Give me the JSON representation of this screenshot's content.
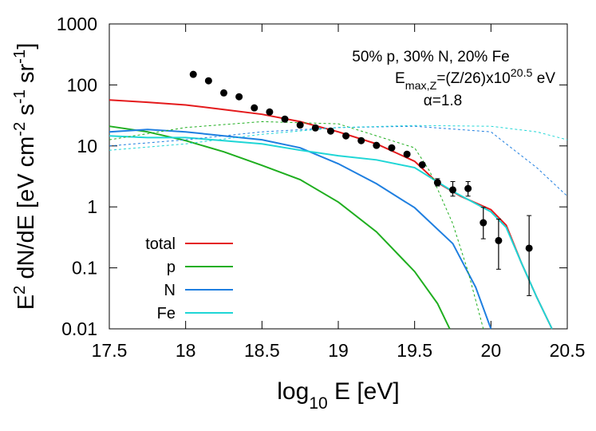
{
  "chart_data": {
    "type": "line",
    "annotations": [
      "50% p, 30% N, 20% Fe",
      [
        "E",
        "max,Z",
        "=(Z/26)x10",
        "20.5",
        " eV"
      ],
      "α=1.8"
    ],
    "xlabel": [
      "log",
      "10",
      " E [eV]"
    ],
    "ylabel": [
      "E",
      "2",
      " dN/dE [eV cm",
      "-2",
      " s",
      "-1",
      " sr",
      "-1",
      "]"
    ],
    "xlim": [
      17.5,
      20.5
    ],
    "xticks": [
      17.5,
      18,
      18.5,
      19,
      19.5,
      20,
      20.5
    ],
    "ylim": [
      0.01,
      1000
    ],
    "yticks": [
      0.01,
      0.1,
      1,
      10,
      100,
      1000
    ],
    "log_y": true,
    "legend": "lower left",
    "series": [
      {
        "name": "total",
        "color": "#e41a1c",
        "x": [
          17.5,
          17.75,
          18,
          18.25,
          18.5,
          18.75,
          19,
          19.25,
          19.5,
          19.65,
          19.8,
          20,
          20.1,
          20.2,
          20.3,
          20.4
        ],
        "values": [
          56.7,
          52,
          47,
          39.5,
          33,
          25,
          17,
          10.8,
          5.6,
          2.5,
          1.5,
          0.9,
          0.5,
          0.12,
          0.033,
          0.01
        ]
      },
      {
        "name": "p",
        "color": "#1fae1f",
        "x": [
          17.5,
          17.75,
          18,
          18.25,
          18.5,
          18.75,
          19,
          19.25,
          19.5,
          19.65,
          19.73
        ],
        "values": [
          21,
          17,
          12.2,
          8,
          4.8,
          2.8,
          1.2,
          0.39,
          0.087,
          0.026,
          0.01
        ]
      },
      {
        "name": "N",
        "color": "#1f7fe0",
        "x": [
          17.5,
          17.75,
          18,
          18.25,
          18.5,
          18.75,
          19,
          19.25,
          19.5,
          19.75,
          19.9,
          20
        ],
        "values": [
          17,
          18.6,
          17,
          14.6,
          12.6,
          9.3,
          5.1,
          2.4,
          0.97,
          0.25,
          0.048,
          0.01
        ]
      },
      {
        "name": "Fe",
        "color": "#1fd6d6",
        "x": [
          17.5,
          17.75,
          18,
          18.25,
          18.5,
          18.75,
          19,
          19.25,
          19.5,
          19.75,
          20,
          20.1,
          20.2,
          20.3,
          20.4
        ],
        "values": [
          14.6,
          13.7,
          13.7,
          12.2,
          10.8,
          8.5,
          6.9,
          5.9,
          4.4,
          1.8,
          0.83,
          0.46,
          0.12,
          0.033,
          0.01
        ]
      },
      {
        "color": "#1fae1f",
        "dashed": true,
        "x": [
          17.5,
          18,
          18.5,
          19,
          19.5,
          19.6,
          19.75,
          19.85,
          19.95
        ],
        "values": [
          12.6,
          20,
          25,
          23,
          9.3,
          3.8,
          0.53,
          0.087,
          0.01
        ]
      },
      {
        "color": "#1f7fe0",
        "dashed": true,
        "x": [
          17.5,
          18,
          18.5,
          19,
          19.5,
          20,
          20.1,
          20.3,
          20.5
        ],
        "values": [
          10,
          12.6,
          17,
          20,
          21,
          17,
          10.8,
          4.4,
          1.5
        ]
      },
      {
        "color": "#1fd6d6",
        "dashed": true,
        "x": [
          17.5,
          18,
          18.5,
          19,
          19.5,
          20,
          20.3,
          20.5
        ],
        "values": [
          8.5,
          10.8,
          15.5,
          20,
          21.6,
          21,
          17,
          12.6
        ]
      }
    ],
    "points": {
      "color": "#000000",
      "x": [
        18.05,
        18.15,
        18.25,
        18.35,
        18.45,
        18.55,
        18.65,
        18.75,
        18.85,
        18.95,
        19.05,
        19.15,
        19.25,
        19.35,
        19.45,
        19.55,
        19.65,
        19.75,
        19.85,
        19.95,
        20.05,
        20.25
      ],
      "values": [
        149,
        117,
        74,
        64,
        42,
        36,
        27.5,
        22,
        19.7,
        17.5,
        14.6,
        12.2,
        10.2,
        9.3,
        7.3,
        4.9,
        2.5,
        1.9,
        2.0,
        0.55,
        0.28,
        0.21
      ],
      "low": [
        null,
        null,
        null,
        null,
        null,
        null,
        null,
        null,
        null,
        null,
        null,
        null,
        null,
        null,
        null,
        null,
        2.2,
        1.5,
        1.5,
        0.3,
        0.095,
        0.035
      ],
      "high": [
        null,
        null,
        null,
        null,
        null,
        null,
        null,
        null,
        null,
        null,
        null,
        null,
        null,
        null,
        null,
        null,
        2.9,
        2.6,
        2.6,
        0.98,
        0.63,
        0.72
      ]
    }
  }
}
